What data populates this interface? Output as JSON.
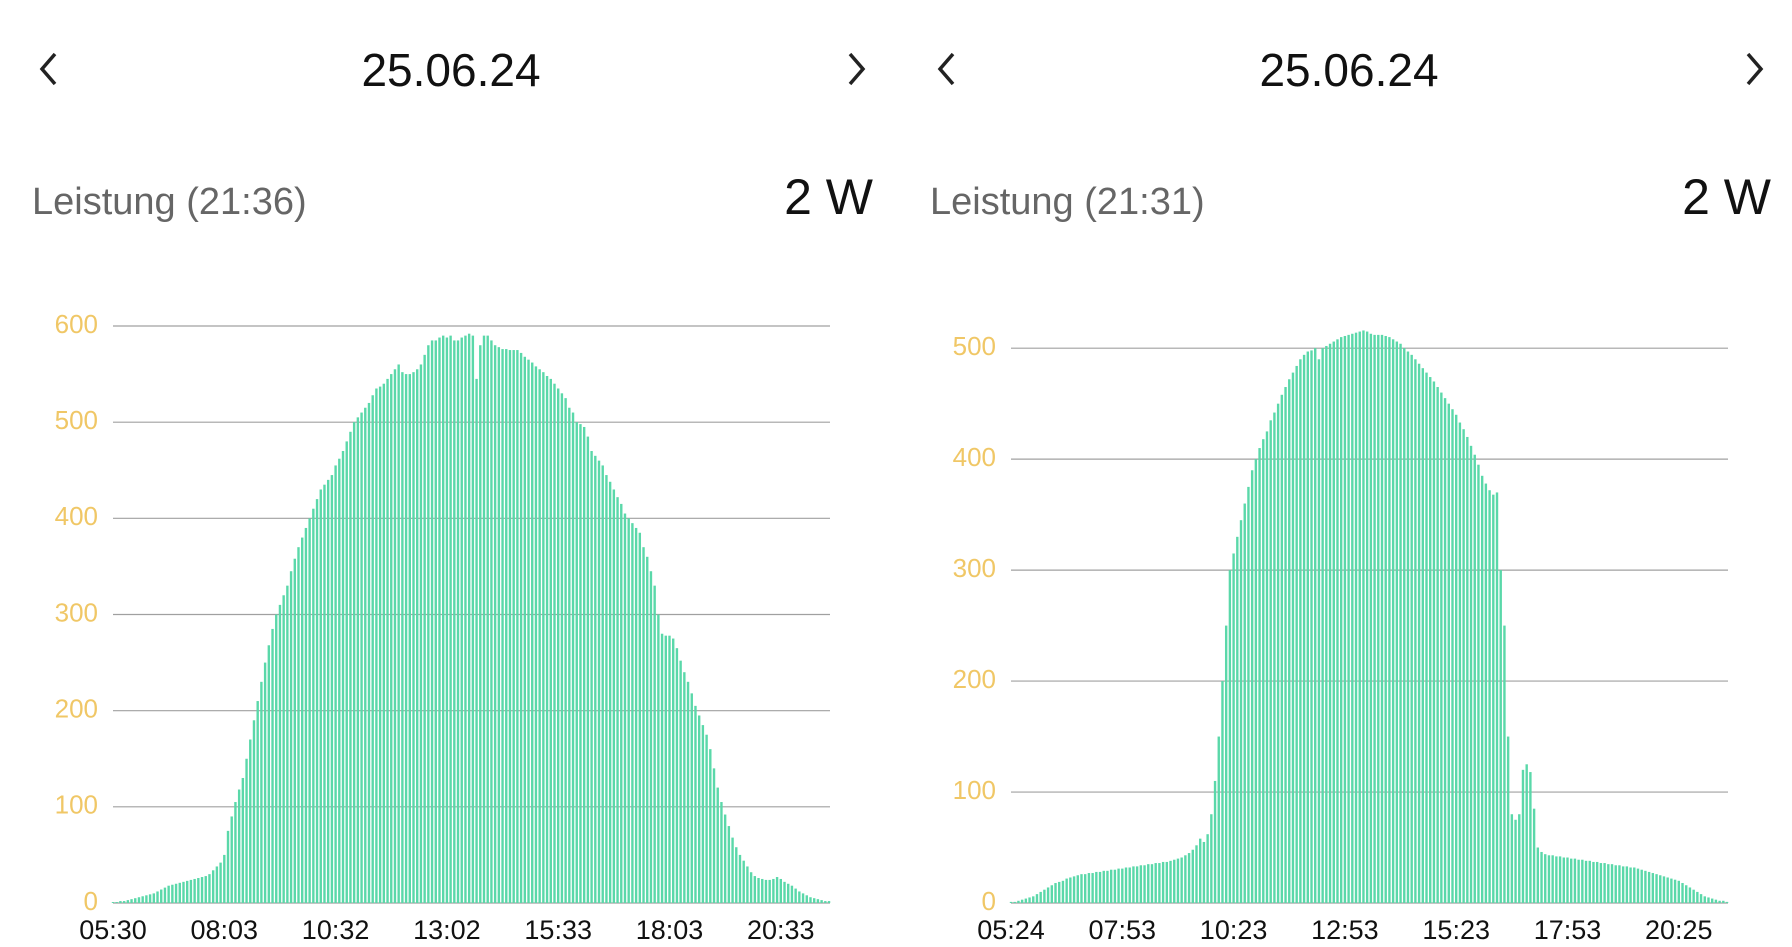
{
  "chart_data": [
    {
      "type": "bar",
      "date": "25.06.24",
      "subtitle": "Leistung (21:36)",
      "current": "2 W",
      "color": "#5ad8a9",
      "categories": [
        "05:30",
        null,
        null,
        null,
        null,
        null,
        null,
        null,
        null,
        null,
        null,
        null,
        null,
        null,
        null,
        null,
        null,
        null,
        null,
        null,
        null,
        null,
        null,
        null,
        null,
        null,
        null,
        null,
        null,
        null,
        "08:03",
        null,
        null,
        null,
        null,
        null,
        null,
        null,
        null,
        null,
        null,
        null,
        null,
        null,
        null,
        null,
        null,
        null,
        null,
        null,
        null,
        null,
        null,
        null,
        null,
        null,
        null,
        null,
        null,
        null,
        "10:32",
        null,
        null,
        null,
        null,
        null,
        null,
        null,
        null,
        null,
        null,
        null,
        null,
        null,
        null,
        null,
        null,
        null,
        null,
        null,
        null,
        null,
        null,
        null,
        null,
        null,
        null,
        null,
        null,
        null,
        "13:02",
        null,
        null,
        null,
        null,
        null,
        null,
        null,
        null,
        null,
        null,
        null,
        null,
        null,
        null,
        null,
        null,
        null,
        null,
        null,
        null,
        null,
        null,
        null,
        null,
        null,
        null,
        null,
        null,
        null,
        "15:33",
        null,
        null,
        null,
        null,
        null,
        null,
        null,
        null,
        null,
        null,
        null,
        null,
        null,
        null,
        null,
        null,
        null,
        null,
        null,
        null,
        null,
        null,
        null,
        null,
        null,
        null,
        null,
        null,
        null,
        "18:03",
        null,
        null,
        null,
        null,
        null,
        null,
        null,
        null,
        null,
        null,
        null,
        null,
        null,
        null,
        null,
        null,
        null,
        null,
        null,
        null,
        null,
        null,
        null,
        null,
        null,
        null,
        null,
        null,
        null,
        "20:33",
        null,
        null,
        null,
        null,
        null,
        null,
        null,
        null,
        null,
        null,
        null,
        null,
        null
      ],
      "values": [
        1,
        1,
        2,
        2,
        3,
        4,
        5,
        6,
        7,
        8,
        9,
        10,
        12,
        14,
        16,
        18,
        19,
        20,
        21,
        22,
        23,
        24,
        25,
        26,
        27,
        28,
        30,
        34,
        38,
        42,
        50,
        75,
        90,
        105,
        118,
        130,
        150,
        170,
        190,
        210,
        230,
        250,
        268,
        285,
        300,
        310,
        320,
        330,
        345,
        358,
        370,
        380,
        390,
        400,
        410,
        420,
        430,
        435,
        440,
        445,
        455,
        462,
        470,
        480,
        490,
        500,
        505,
        510,
        515,
        520,
        528,
        535,
        537,
        540,
        545,
        550,
        555,
        560,
        552,
        550,
        550,
        552,
        555,
        560,
        570,
        580,
        585,
        585,
        588,
        590,
        588,
        590,
        585,
        585,
        588,
        590,
        592,
        590,
        545,
        580,
        590,
        590,
        585,
        580,
        578,
        576,
        576,
        575,
        575,
        575,
        572,
        568,
        565,
        562,
        558,
        555,
        552,
        548,
        545,
        540,
        535,
        530,
        525,
        515,
        510,
        500,
        498,
        495,
        485,
        470,
        465,
        460,
        455,
        445,
        438,
        430,
        422,
        415,
        405,
        400,
        395,
        390,
        385,
        370,
        360,
        345,
        330,
        300,
        280,
        278,
        278,
        275,
        265,
        252,
        240,
        230,
        218,
        205,
        195,
        185,
        175,
        160,
        140,
        120,
        105,
        92,
        80,
        68,
        58,
        50,
        44,
        38,
        32,
        28,
        26,
        25,
        24,
        24,
        25,
        27,
        25,
        22,
        20,
        18,
        15,
        12,
        10,
        8,
        6,
        5,
        4,
        3,
        2,
        2
      ],
      "ylim": [
        0,
        600
      ],
      "yticks": [
        0,
        100,
        200,
        300,
        400,
        500,
        600
      ],
      "grid": true
    },
    {
      "type": "bar",
      "date": "25.06.24",
      "subtitle": "Leistung (21:31)",
      "current": "2 W",
      "color": "#5ad8a9",
      "categories": [
        "05:24",
        null,
        null,
        null,
        null,
        null,
        null,
        null,
        null,
        null,
        null,
        null,
        null,
        null,
        null,
        null,
        null,
        null,
        null,
        null,
        null,
        null,
        null,
        null,
        null,
        null,
        null,
        null,
        null,
        null,
        "07:53",
        null,
        null,
        null,
        null,
        null,
        null,
        null,
        null,
        null,
        null,
        null,
        null,
        null,
        null,
        null,
        null,
        null,
        null,
        null,
        null,
        null,
        null,
        null,
        null,
        null,
        null,
        null,
        null,
        null,
        "10:23",
        null,
        null,
        null,
        null,
        null,
        null,
        null,
        null,
        null,
        null,
        null,
        null,
        null,
        null,
        null,
        null,
        null,
        null,
        null,
        null,
        null,
        null,
        null,
        null,
        null,
        null,
        null,
        null,
        null,
        "12:53",
        null,
        null,
        null,
        null,
        null,
        null,
        null,
        null,
        null,
        null,
        null,
        null,
        null,
        null,
        null,
        null,
        null,
        null,
        null,
        null,
        null,
        null,
        null,
        null,
        null,
        null,
        null,
        null,
        null,
        "15:23",
        null,
        null,
        null,
        null,
        null,
        null,
        null,
        null,
        null,
        null,
        null,
        null,
        null,
        null,
        null,
        null,
        null,
        null,
        null,
        null,
        null,
        null,
        null,
        null,
        null,
        null,
        null,
        null,
        null,
        "17:53",
        null,
        null,
        null,
        null,
        null,
        null,
        null,
        null,
        null,
        null,
        null,
        null,
        null,
        null,
        null,
        null,
        null,
        null,
        null,
        null,
        null,
        null,
        null,
        null,
        null,
        null,
        null,
        null,
        null,
        "20:25",
        null,
        null,
        null,
        null,
        null,
        null,
        null,
        null,
        null,
        null,
        null,
        null,
        null
      ],
      "values": [
        1,
        1,
        2,
        3,
        4,
        5,
        6,
        8,
        10,
        12,
        14,
        16,
        18,
        19,
        20,
        22,
        23,
        24,
        25,
        26,
        26,
        27,
        27,
        28,
        28,
        29,
        29,
        30,
        30,
        31,
        31,
        32,
        32,
        33,
        33,
        34,
        34,
        35,
        35,
        36,
        36,
        37,
        37,
        38,
        39,
        40,
        41,
        43,
        45,
        48,
        52,
        58,
        55,
        62,
        80,
        110,
        150,
        200,
        250,
        300,
        315,
        330,
        345,
        360,
        375,
        390,
        400,
        410,
        418,
        425,
        435,
        442,
        450,
        458,
        465,
        472,
        478,
        484,
        490,
        494,
        497,
        498,
        500,
        490,
        500,
        502,
        504,
        506,
        508,
        510,
        511,
        512,
        513,
        514,
        515,
        516,
        515,
        513,
        512,
        512,
        512,
        511,
        510,
        508,
        506,
        504,
        500,
        497,
        494,
        490,
        486,
        482,
        478,
        474,
        470,
        465,
        460,
        455,
        450,
        445,
        440,
        433,
        427,
        420,
        412,
        404,
        395,
        385,
        378,
        372,
        368,
        370,
        300,
        250,
        150,
        80,
        75,
        80,
        120,
        125,
        118,
        85,
        50,
        46,
        44,
        43,
        43,
        42,
        42,
        41,
        41,
        40,
        40,
        39,
        39,
        38,
        38,
        37,
        37,
        36,
        36,
        35,
        35,
        34,
        34,
        33,
        33,
        32,
        32,
        31,
        30,
        29,
        28,
        27,
        26,
        25,
        24,
        23,
        22,
        21,
        20,
        18,
        16,
        14,
        12,
        10,
        8,
        6,
        5,
        4,
        3,
        2,
        2,
        1
      ],
      "ylim": [
        0,
        520
      ],
      "yticks": [
        0,
        100,
        200,
        300,
        400,
        500
      ],
      "grid": true
    }
  ]
}
